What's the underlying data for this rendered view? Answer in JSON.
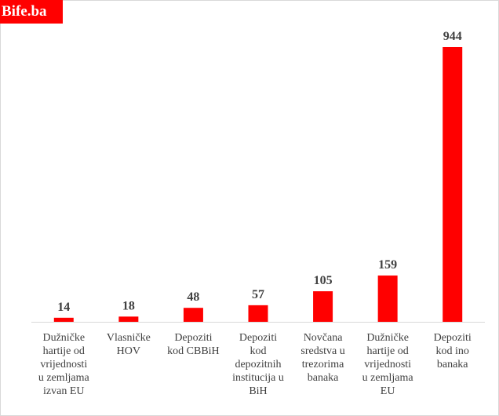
{
  "logo_text": "Bife.ba",
  "chart_data": {
    "type": "bar",
    "categories": [
      [
        "Dužničke",
        "hartije od",
        "vrijednosti",
        "u zemljama",
        "izvan EU"
      ],
      [
        "Vlasničke",
        "HOV"
      ],
      [
        "Depoziti",
        "kod CBBiH"
      ],
      [
        "Depoziti",
        "kod",
        "depozitnih",
        "institucija u",
        "BiH"
      ],
      [
        "Novčana",
        "sredstva u",
        "trezorima",
        "banaka"
      ],
      [
        "Dužničke",
        "hartije od",
        "vrijednosti",
        "u zemljama",
        "EU"
      ],
      [
        "Depoziti",
        "kod ino",
        "banaka"
      ]
    ],
    "values": [
      14,
      18,
      48,
      57,
      105,
      159,
      944
    ],
    "value_labels": [
      "14",
      "18",
      "48",
      "57",
      "105",
      "159",
      "944"
    ],
    "ylim": [
      0,
      944
    ],
    "bar_color": "#ff0000",
    "grid": false,
    "legend": "none"
  }
}
